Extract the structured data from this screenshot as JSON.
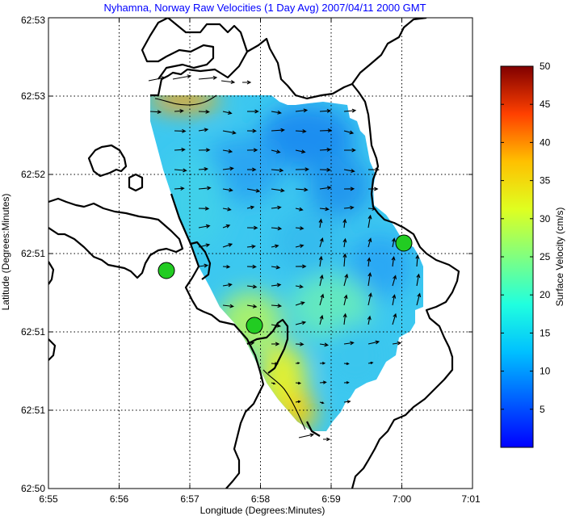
{
  "chart_data": {
    "type": "heatmap",
    "title": "Nyhamna, Norway Raw Velocities (1 Day Avg) 2007/04/11 2000 GMT",
    "xlabel": "Longitude (Degrees:Minutes)",
    "ylabel": "Latitude (Degrees:Minutes)",
    "x_tick_labels": [
      "6:55",
      "6:56",
      "6:57",
      "6:58",
      "6:59",
      "7:00",
      "7:01"
    ],
    "y_tick_labels": [
      "62:50",
      "62:51",
      "62:51",
      "62:51",
      "62:52",
      "62:53",
      "62:53"
    ],
    "colorbar": {
      "label": "Surface Velocity (cm/s)",
      "range": [
        0,
        50
      ],
      "tick_labels": [
        "5",
        "10",
        "15",
        "20",
        "25",
        "30",
        "35",
        "40",
        "45",
        "50"
      ],
      "colormap": "jet"
    },
    "grid": true,
    "site_markers": [
      {
        "lon_index": 1.65,
        "lat_index": 2.78
      },
      {
        "lon_index": 3.0,
        "lat_index": 1.99
      },
      {
        "lon_index": 4.68,
        "lat_index": 3.15
      }
    ],
    "vectors_shown": true,
    "speed_cm_s_range_approx": [
      4,
      30
    ]
  }
}
